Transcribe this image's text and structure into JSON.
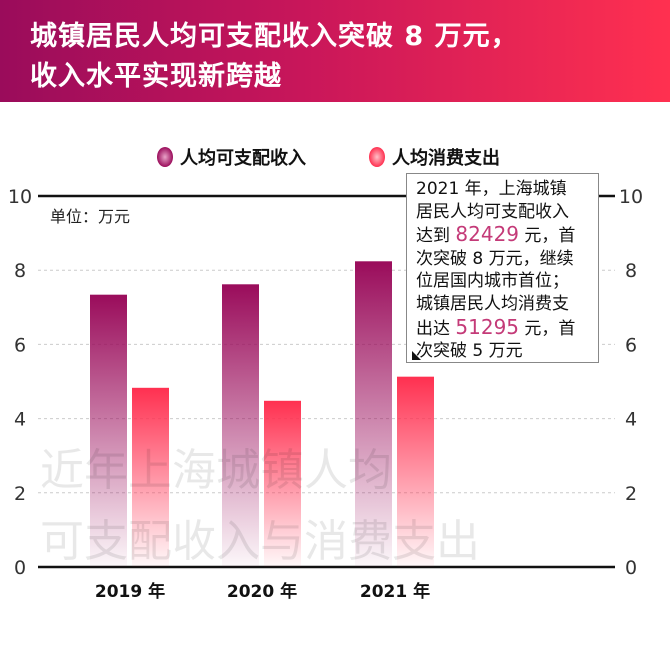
{
  "header": {
    "title_line1": "城镇居民人均可支配收入突破 8 万元，",
    "title_line2": "收入水平实现新跨越"
  },
  "colors": {
    "income_top": "#9a0c5b",
    "expense_top": "#ff3050",
    "header_left": "#9a0c5b",
    "header_right": "#ff3050",
    "highlight": "#c43a78"
  },
  "callout": {
    "line1": "2021 年，上海城镇",
    "line2": "居民人均可支配收入",
    "line3_pre": "达到 ",
    "line3_num": "82429",
    "line3_post": " 元，首",
    "line4": "次突破 8 万元，继续",
    "line5": "位居国内城市首位；",
    "line6": "城镇居民人均消费支",
    "line7_pre": "出达 ",
    "line7_num": "51295",
    "line7_post": " 元，首",
    "line8": "次突破 5 万元"
  },
  "watermark": {
    "line1": "近年上海城镇人均",
    "line2": "可支配收入与消费支出"
  },
  "chart_data": {
    "type": "bar",
    "categories": [
      "2019 年",
      "2020 年",
      "2021 年"
    ],
    "series": [
      {
        "name": "人均可支配收入",
        "values": [
          7.34,
          7.62,
          8.24
        ]
      },
      {
        "name": "人均消费支出",
        "values": [
          4.83,
          4.48,
          5.13
        ]
      }
    ],
    "unit_label": "单位：万元",
    "ylim": [
      0,
      10
    ],
    "yticks": [
      "0",
      "2",
      "4",
      "6",
      "8",
      "10"
    ],
    "grid": true,
    "legend": "top"
  }
}
